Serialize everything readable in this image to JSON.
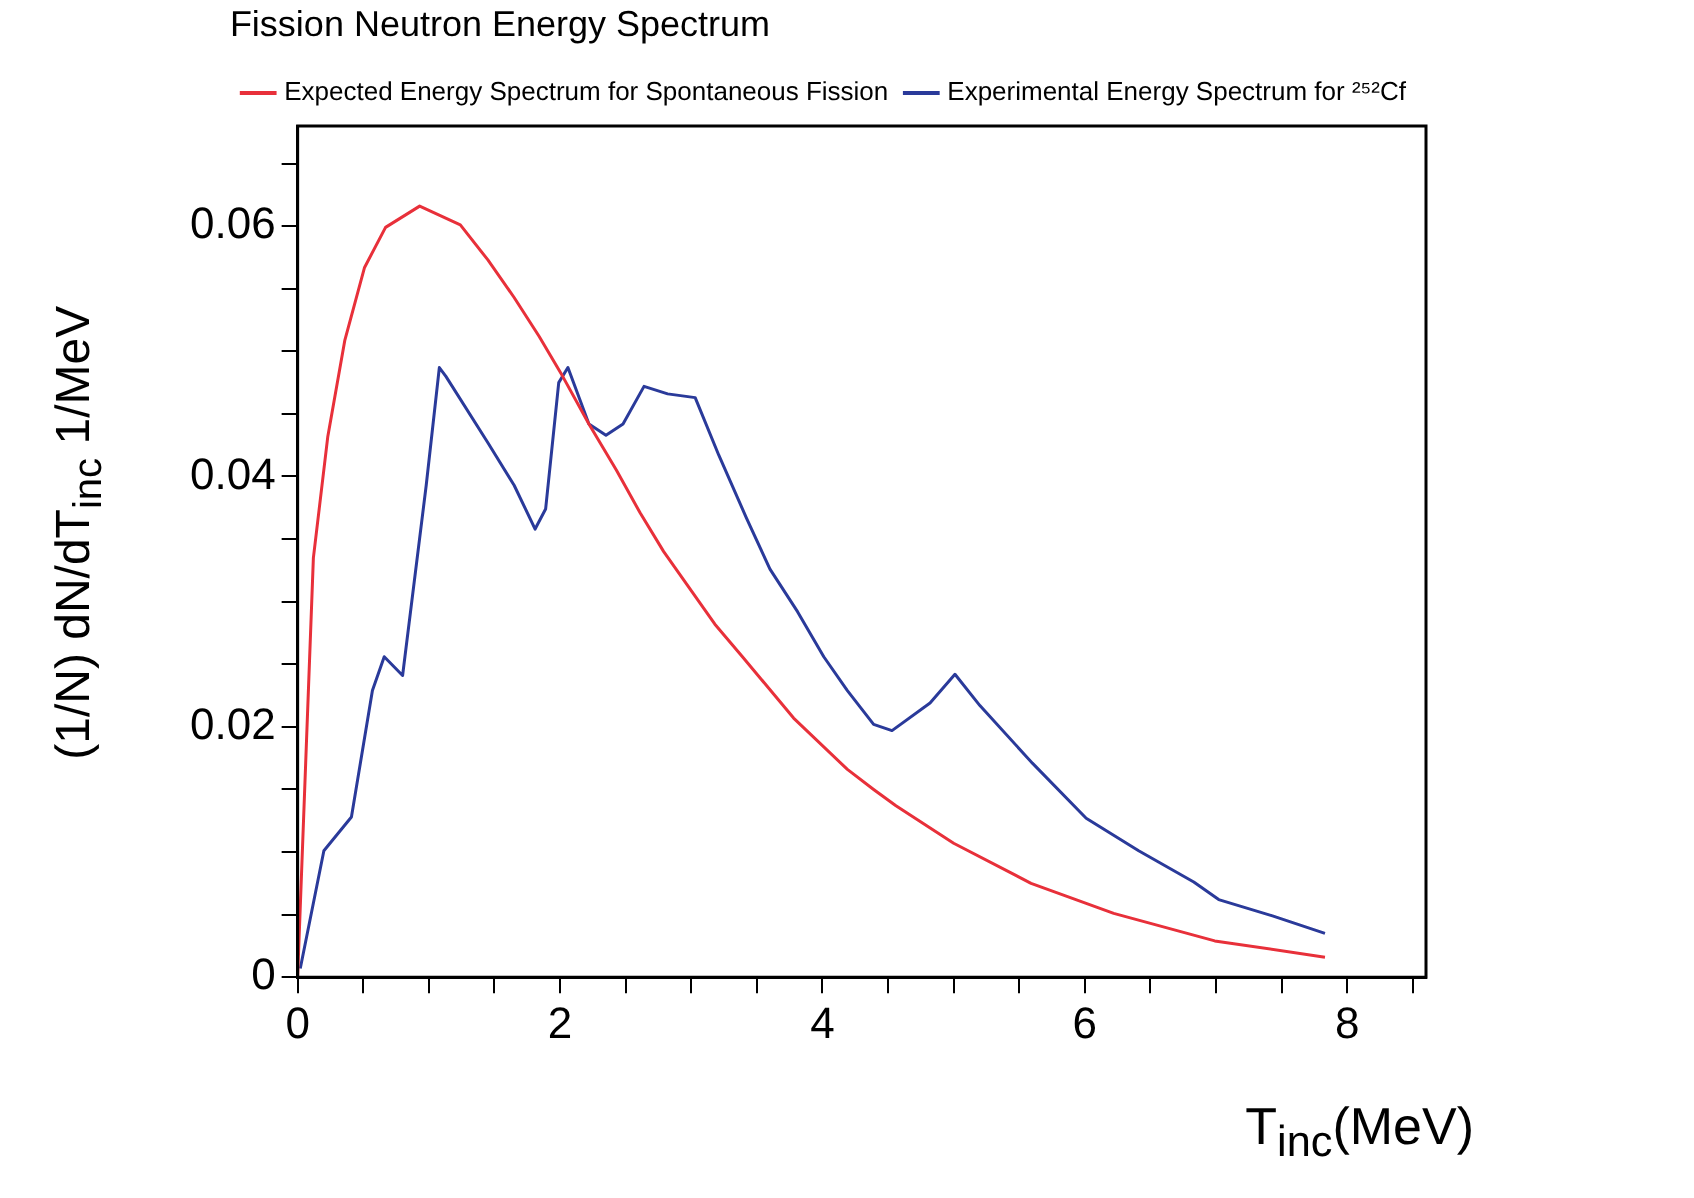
{
  "chart_data": {
    "type": "line",
    "title": "Fission Neutron Energy Spectrum",
    "xlabel": "T$_{inc}$(MeV)",
    "ylabel": "(1/N) dN/dT$_{inc}$ 1/MeV",
    "xlim": [
      0,
      8.6
    ],
    "xticks": [
      0,
      {
        "value": 0.5,
        "label": null
      },
      {
        "value": 1,
        "label": null
      },
      {
        "value": 1.5,
        "label": null
      },
      2,
      {
        "value": 2.5,
        "label": null
      },
      {
        "value": 3,
        "label": null
      },
      {
        "value": 3.5,
        "label": null
      },
      4,
      {
        "value": 4.5,
        "label": null
      },
      {
        "value": 5,
        "label": null
      },
      {
        "value": 5.5,
        "label": null
      },
      6,
      {
        "value": 6.5,
        "label": null
      },
      {
        "value": 7,
        "label": null
      },
      {
        "value": 7.5,
        "label": null
      },
      8,
      {
        "value": 8.5,
        "label": null
      }
    ],
    "ylim": [
      0,
      0.068
    ],
    "yticks": [
      0,
      {
        "value": 0.005,
        "label": null
      },
      {
        "value": 0.01,
        "label": null
      },
      {
        "value": 0.015,
        "label": null
      },
      0.02,
      {
        "value": 0.025,
        "label": null
      },
      {
        "value": 0.03,
        "label": null
      },
      {
        "value": 0.035,
        "label": null
      },
      0.04,
      {
        "value": 0.045,
        "label": null
      },
      {
        "value": 0.05,
        "label": null
      },
      {
        "value": 0.055,
        "label": null
      },
      0.06,
      {
        "value": 0.065,
        "label": null
      }
    ],
    "grid": false,
    "legend": "top right",
    "line_style": "solid",
    "series": [
      {
        "name": "Expected Energy Spectrum for Spontaneous Fission",
        "color": "#e8303a",
        "x": [
          0,
          0.12,
          0.23,
          0.36,
          0.51,
          0.67,
          0.93,
          1.24,
          1.45,
          1.65,
          1.84,
          2.02,
          2.22,
          2.43,
          2.61,
          2.79,
          3.18,
          3.39,
          3.78,
          4.19,
          4.39,
          4.56,
          5.0,
          5.59,
          6.22,
          6.99,
          7.83
        ],
        "values": [
          0,
          0.0335,
          0.0432,
          0.0509,
          0.0567,
          0.0599,
          0.0616,
          0.0601,
          0.0573,
          0.0543,
          0.0512,
          0.048,
          0.0442,
          0.0405,
          0.0371,
          0.034,
          0.0282,
          0.0256,
          0.0207,
          0.0166,
          0.015,
          0.0137,
          0.0107,
          0.0075,
          0.0051,
          0.0029,
          0.0016
        ]
      },
      {
        "name": "Experimental Energy Spectrum for ²⁵²Cf",
        "color": "#2a3a9a",
        "x": [
          0.02,
          0.2,
          0.41,
          0.57,
          0.66,
          0.8,
          0.98,
          1.08,
          1.13,
          1.45,
          1.65,
          1.81,
          1.89,
          1.99,
          2.06,
          2.22,
          2.35,
          2.48,
          2.64,
          2.82,
          3.03,
          3.21,
          3.42,
          3.6,
          3.81,
          4.01,
          4.19,
          4.39,
          4.53,
          4.82,
          5.01,
          5.2,
          5.6,
          6.01,
          6.41,
          6.83,
          7.02,
          7.43,
          7.83
        ],
        "values": [
          0.0007,
          0.0101,
          0.0128,
          0.0229,
          0.0256,
          0.0241,
          0.0393,
          0.0487,
          0.048,
          0.0427,
          0.0393,
          0.0358,
          0.0374,
          0.0475,
          0.0487,
          0.0442,
          0.0433,
          0.0442,
          0.0472,
          0.0466,
          0.0463,
          0.0417,
          0.0367,
          0.0326,
          0.0292,
          0.0256,
          0.0229,
          0.0202,
          0.0197,
          0.0219,
          0.0242,
          0.0217,
          0.0171,
          0.0127,
          0.0101,
          0.0076,
          0.0062,
          0.0049,
          0.0035
        ]
      }
    ]
  }
}
